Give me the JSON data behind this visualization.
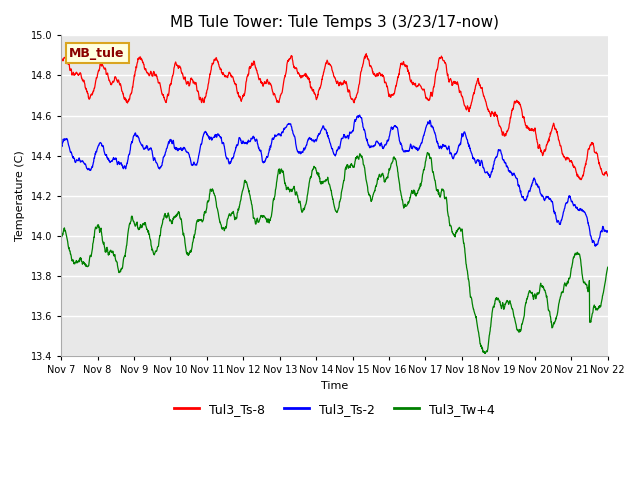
{
  "title": "MB Tule Tower: Tule Temps 3 (3/23/17-now)",
  "xlabel": "Time",
  "ylabel": "Temperature (C)",
  "ylim": [
    13.4,
    15.0
  ],
  "xlim": [
    0,
    15
  ],
  "x_tick_labels": [
    "Nov 7",
    "Nov 8",
    "Nov 9",
    "Nov 10",
    "Nov 11",
    "Nov 12",
    "Nov 13",
    "Nov 14",
    "Nov 15",
    "Nov 16",
    "Nov 17",
    "Nov 18",
    "Nov 19",
    "Nov 20",
    "Nov 21",
    "Nov 22"
  ],
  "x_tick_positions": [
    0,
    1,
    2,
    3,
    4,
    5,
    6,
    7,
    8,
    9,
    10,
    11,
    12,
    13,
    14,
    15
  ],
  "y_ticks": [
    13.4,
    13.6,
    13.8,
    14.0,
    14.2,
    14.4,
    14.6,
    14.8,
    15.0
  ],
  "line_colors": [
    "red",
    "blue",
    "green"
  ],
  "line_labels": [
    "Tul3_Ts-8",
    "Tul3_Ts-2",
    "Tul3_Tw+4"
  ],
  "legend_label": "MB_tule",
  "bg_color": "#e8e8e8",
  "title_fontsize": 11,
  "axis_fontsize": 8,
  "tick_fontsize": 7,
  "legend_fontsize": 9,
  "linewidth": 0.9
}
